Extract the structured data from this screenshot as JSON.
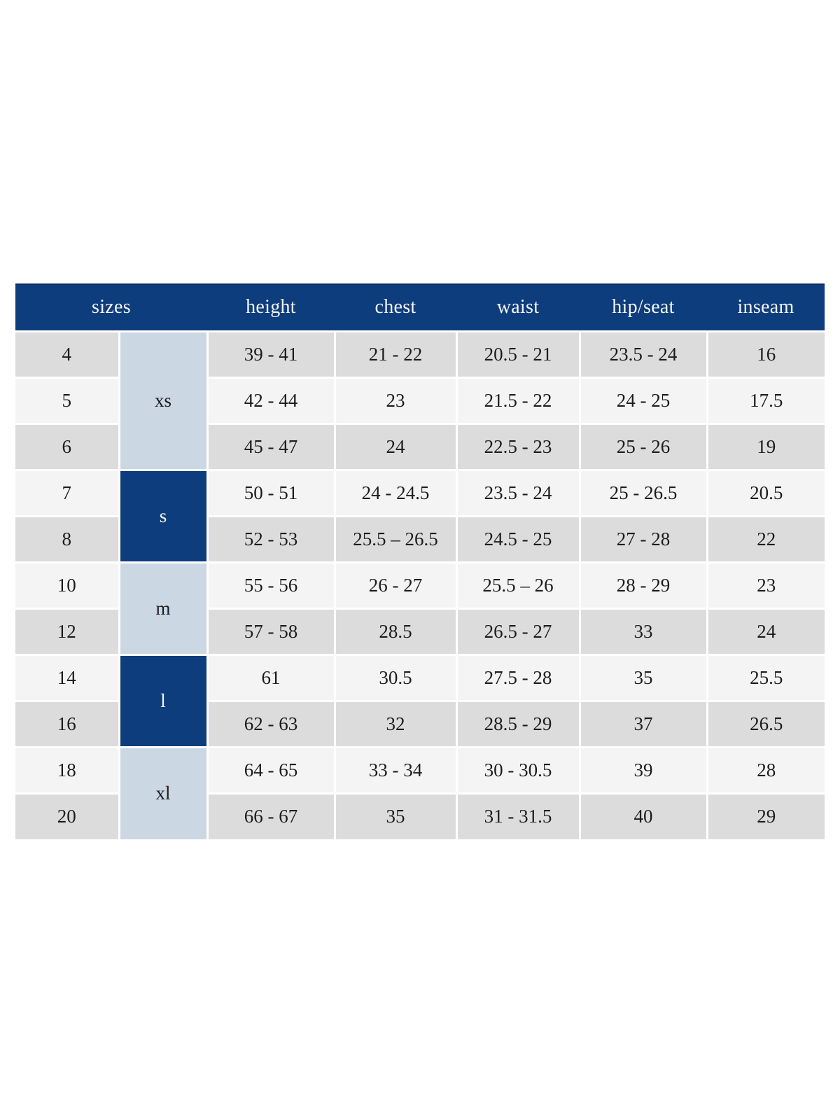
{
  "table": {
    "header": {
      "sizes": "sizes",
      "height": "height",
      "chest": "chest",
      "waist": "waist",
      "hip_seat": "hip/seat",
      "inseam": "inseam"
    },
    "groups": [
      {
        "label": "xs",
        "rows": 3,
        "variant": "light"
      },
      {
        "label": "s",
        "rows": 2,
        "variant": "dark"
      },
      {
        "label": "m",
        "rows": 2,
        "variant": "light"
      },
      {
        "label": "l",
        "rows": 2,
        "variant": "dark"
      },
      {
        "label": "xl",
        "rows": 2,
        "variant": "light"
      }
    ],
    "rows": [
      {
        "size": "4",
        "height": "39 - 41",
        "chest": "21 - 22",
        "waist": "20.5 - 21",
        "hip": "23.5 - 24",
        "inseam": "16"
      },
      {
        "size": "5",
        "height": "42 - 44",
        "chest": "23",
        "waist": "21.5 - 22",
        "hip": "24 - 25",
        "inseam": "17.5"
      },
      {
        "size": "6",
        "height": "45 - 47",
        "chest": "24",
        "waist": "22.5 - 23",
        "hip": "25 - 26",
        "inseam": "19"
      },
      {
        "size": "7",
        "height": "50 - 51",
        "chest": "24 - 24.5",
        "waist": "23.5 - 24",
        "hip": "25 - 26.5",
        "inseam": "20.5"
      },
      {
        "size": "8",
        "height": "52 - 53",
        "chest": "25.5 – 26.5",
        "waist": "24.5 - 25",
        "hip": "27 - 28",
        "inseam": "22"
      },
      {
        "size": "10",
        "height": "55 - 56",
        "chest": "26 - 27",
        "waist": "25.5 – 26",
        "hip": "28 - 29",
        "inseam": "23"
      },
      {
        "size": "12",
        "height": "57 - 58",
        "chest": "28.5",
        "waist": "26.5 - 27",
        "hip": "33",
        "inseam": "24"
      },
      {
        "size": "14",
        "height": "61",
        "chest": "30.5",
        "waist": "27.5 - 28",
        "hip": "35",
        "inseam": "25.5"
      },
      {
        "size": "16",
        "height": "62 - 63",
        "chest": "32",
        "waist": "28.5 - 29",
        "hip": "37",
        "inseam": "26.5"
      },
      {
        "size": "18",
        "height": "64 - 65",
        "chest": "33 - 34",
        "waist": "30 - 30.5",
        "hip": "39",
        "inseam": "28"
      },
      {
        "size": "20",
        "height": "66 - 67",
        "chest": "35",
        "waist": "31 - 31.5",
        "hip": "40",
        "inseam": "29"
      }
    ],
    "colors": {
      "header_bg": "#0e3d7e",
      "header_text": "#f5f5f2",
      "header_top_line": "#0a2c5e",
      "group_light_bg": "#ccd7e4",
      "group_dark_bg": "#0e3d7e",
      "group_dark_text": "#f5f5f2",
      "row_gray": "#dcdcdc",
      "row_light": "#f4f4f4",
      "text": "#1c1c1c",
      "separator": "#ffffff",
      "page_bg": "#ffffff"
    }
  }
}
